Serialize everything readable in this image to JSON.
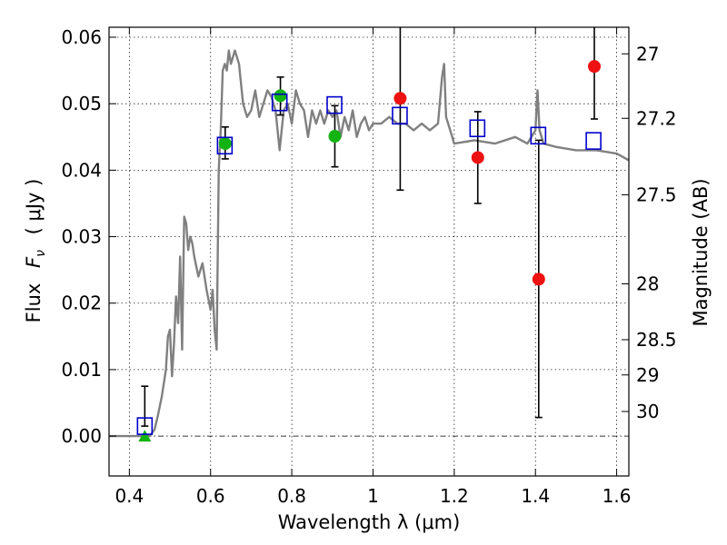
{
  "chart_data": {
    "type": "scatter",
    "title": "",
    "xlabel": "Wavelength  λ (μm)",
    "ylabel": "Flux  F_ν  ( μJy )",
    "ylabel_parts": {
      "prefix": "Flux",
      "symbol": "F",
      "subscript": "ν",
      "unit": "( μJy )"
    },
    "y2label": "Magnitude (AB)",
    "xlim": [
      0.35,
      1.63
    ],
    "ylim": [
      -0.006,
      0.0615
    ],
    "grid": true,
    "x_ticks": [
      0.4,
      0.6,
      0.8,
      1.0,
      1.2,
      1.4,
      1.6
    ],
    "x_tick_labels": [
      "0.4",
      "0.6",
      "0.8",
      "1",
      "1.2",
      "1.4",
      "1.6"
    ],
    "y_ticks": [
      0.0,
      0.01,
      0.02,
      0.03,
      0.04,
      0.05,
      0.06
    ],
    "y_tick_labels": [
      "0.00",
      "0.01",
      "0.02",
      "0.03",
      "0.04",
      "0.05",
      "0.06"
    ],
    "y2_ticks": [
      {
        "label": "27",
        "flux": 0.0575
      },
      {
        "label": "27.2",
        "flux": 0.0478
      },
      {
        "label": "27.5",
        "flux": 0.0363
      },
      {
        "label": "28",
        "flux": 0.0229
      },
      {
        "label": "28.5",
        "flux": 0.0145
      },
      {
        "label": "29",
        "flux": 0.0092
      },
      {
        "label": "30",
        "flux": 0.0037
      }
    ],
    "zero_line": 0.0,
    "model_spectrum": {
      "color": "#808080",
      "x": [
        0.35,
        0.45,
        0.462,
        0.47,
        0.48,
        0.49,
        0.495,
        0.5,
        0.505,
        0.51,
        0.515,
        0.52,
        0.525,
        0.53,
        0.535,
        0.54,
        0.545,
        0.55,
        0.555,
        0.56,
        0.57,
        0.58,
        0.59,
        0.6,
        0.605,
        0.61,
        0.615,
        0.62,
        0.625,
        0.63,
        0.635,
        0.64,
        0.645,
        0.65,
        0.66,
        0.67,
        0.68,
        0.69,
        0.7,
        0.71,
        0.72,
        0.73,
        0.74,
        0.75,
        0.76,
        0.77,
        0.78,
        0.79,
        0.8,
        0.81,
        0.82,
        0.83,
        0.84,
        0.85,
        0.86,
        0.87,
        0.88,
        0.89,
        0.9,
        0.91,
        0.92,
        0.93,
        0.94,
        0.95,
        0.96,
        0.97,
        0.98,
        0.99,
        1.0,
        1.02,
        1.04,
        1.06,
        1.08,
        1.1,
        1.12,
        1.14,
        1.16,
        1.17,
        1.175,
        1.18,
        1.19,
        1.2,
        1.25,
        1.3,
        1.35,
        1.38,
        1.4,
        1.405,
        1.41,
        1.42,
        1.45,
        1.5,
        1.55,
        1.6,
        1.63
      ],
      "y": [
        0.0,
        0.0,
        0.001,
        0.003,
        0.006,
        0.01,
        0.015,
        0.016,
        0.009,
        0.014,
        0.021,
        0.017,
        0.027,
        0.013,
        0.033,
        0.032,
        0.028,
        0.03,
        0.029,
        0.027,
        0.024,
        0.026,
        0.022,
        0.019,
        0.022,
        0.016,
        0.013,
        0.04,
        0.046,
        0.055,
        0.056,
        0.055,
        0.058,
        0.056,
        0.058,
        0.056,
        0.05,
        0.048,
        0.049,
        0.052,
        0.048,
        0.05,
        0.052,
        0.051,
        0.049,
        0.043,
        0.049,
        0.05,
        0.047,
        0.052,
        0.05,
        0.049,
        0.045,
        0.049,
        0.047,
        0.049,
        0.047,
        0.049,
        0.048,
        0.049,
        0.045,
        0.048,
        0.046,
        0.049,
        0.045,
        0.047,
        0.048,
        0.046,
        0.047,
        0.047,
        0.048,
        0.047,
        0.047,
        0.046,
        0.047,
        0.046,
        0.047,
        0.054,
        0.056,
        0.048,
        0.046,
        0.044,
        0.0445,
        0.044,
        0.045,
        0.044,
        0.046,
        0.052,
        0.046,
        0.044,
        0.0435,
        0.043,
        0.043,
        0.0425,
        0.0415
      ]
    },
    "series": [
      {
        "marker": "open-square",
        "color": "#0000cc",
        "points": [
          {
            "x": 0.438,
            "y": 0.0015,
            "err_low": 0.0015,
            "err_high": 0.0075
          },
          {
            "x": 0.635,
            "y": 0.0437
          },
          {
            "x": 0.77,
            "y": 0.0502
          },
          {
            "x": 0.905,
            "y": 0.0498
          },
          {
            "x": 1.066,
            "y": 0.0482
          },
          {
            "x": 1.257,
            "y": 0.0463
          },
          {
            "x": 1.407,
            "y": 0.0452
          },
          {
            "x": 1.543,
            "y": 0.0444
          }
        ]
      },
      {
        "marker": "filled-circle",
        "color": "#12b312",
        "points": [
          {
            "x": 0.636,
            "y": 0.044,
            "err_low": 0.0417,
            "err_high": 0.0465
          },
          {
            "x": 0.772,
            "y": 0.0512,
            "err_low": 0.0483,
            "err_high": 0.054
          },
          {
            "x": 0.906,
            "y": 0.0451,
            "err_low": 0.0405,
            "err_high": 0.0497
          }
        ]
      },
      {
        "marker": "filled-circle",
        "color": "#ee1111",
        "points": [
          {
            "x": 1.067,
            "y": 0.0508,
            "err_low": 0.037,
            "err_high": 0.0615
          },
          {
            "x": 1.258,
            "y": 0.0419,
            "err_low": 0.035,
            "err_high": 0.0488
          },
          {
            "x": 1.408,
            "y": 0.0236,
            "err_low": 0.0028,
            "err_high": 0.0445
          },
          {
            "x": 1.545,
            "y": 0.0556,
            "err_low": 0.0477,
            "err_high": 0.0615
          }
        ]
      },
      {
        "marker": "filled-triangle",
        "color": "#12b312",
        "points": [
          {
            "x": 0.438,
            "y": 0.0
          }
        ]
      }
    ]
  }
}
